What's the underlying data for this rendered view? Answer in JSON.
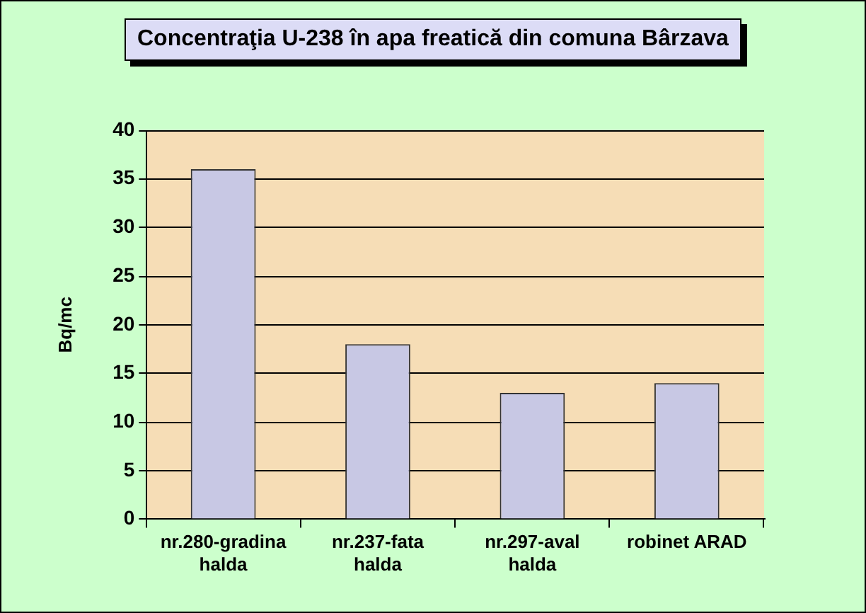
{
  "chart_data": {
    "type": "bar",
    "title": "Concentraţia U-238 în apa freatică din comuna Bârzava",
    "ylabel": "Bq/mc",
    "categories": [
      "nr.280-gradina halda",
      "nr.237-fata halda",
      "nr.297-aval halda",
      "robinet ARAD"
    ],
    "values": [
      36,
      18,
      13,
      14
    ],
    "color": "#c8c8e4",
    "ylim": [
      0,
      40
    ],
    "yticks": [
      0,
      5,
      10,
      15,
      20,
      25,
      30,
      35,
      40
    ],
    "grid": "y"
  }
}
